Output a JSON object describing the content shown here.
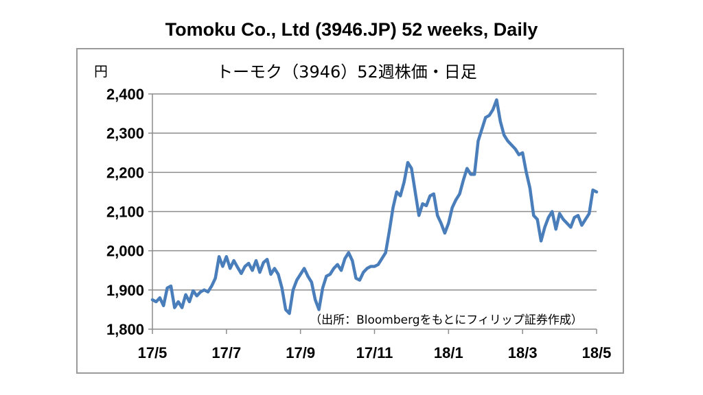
{
  "page_title": "Tomoku Co., Ltd (3946.JP) 52 weeks, Daily",
  "colors": {
    "line": "#4a7ebb",
    "grid": "#8c8c8c",
    "frame": "#9a9a9a"
  },
  "chart_data": {
    "type": "line",
    "title": "トーモク（3946）52週株価・日足",
    "ylabel": "円",
    "source_note": "（出所：Bloombergをもとにフィリップ証券作成）",
    "ylim": [
      1800,
      2400
    ],
    "yticks": [
      1800,
      1900,
      2000,
      2100,
      2200,
      2300,
      2400
    ],
    "ytick_labels": [
      "1,800",
      "1,900",
      "2,000",
      "2,100",
      "2,200",
      "2,300",
      "2,400"
    ],
    "xticks": [
      "17/5",
      "17/7",
      "17/9",
      "17/11",
      "18/1",
      "18/3",
      "18/5"
    ],
    "grid": true,
    "series": [
      {
        "x": [
          0,
          0.05,
          0.1,
          0.15,
          0.2,
          0.25,
          0.3,
          0.35,
          0.4,
          0.45,
          0.5,
          0.55,
          0.6,
          0.65,
          0.7,
          0.75,
          0.8,
          0.85,
          0.9,
          0.95,
          1,
          1.05,
          1.1,
          1.15,
          1.2,
          1.25,
          1.3,
          1.35,
          1.4,
          1.45,
          1.5,
          1.55,
          1.6,
          1.65,
          1.7,
          1.75,
          1.8,
          1.85,
          1.9,
          1.95,
          2,
          2.05,
          2.1,
          2.15,
          2.2,
          2.25,
          2.3,
          2.35,
          2.4,
          2.45,
          2.5,
          2.55,
          2.6,
          2.65,
          2.7,
          2.75,
          2.8,
          2.85,
          2.9,
          2.95,
          3,
          3.05,
          3.1,
          3.15,
          3.2,
          3.25,
          3.3,
          3.35,
          3.4,
          3.45,
          3.5,
          3.55,
          3.6,
          3.65,
          3.7,
          3.75,
          3.8,
          3.85,
          3.9,
          3.95,
          4,
          4.05,
          4.1,
          4.15,
          4.2,
          4.25,
          4.3,
          4.35,
          4.4,
          4.45,
          4.5,
          4.55,
          4.6,
          4.65,
          4.7,
          4.75,
          4.8,
          4.85,
          4.9,
          4.95,
          5,
          5.05,
          5.1,
          5.15,
          5.2,
          5.25,
          5.3,
          5.35,
          5.4,
          5.45,
          5.5,
          5.55,
          5.6,
          5.65,
          5.7,
          5.75,
          5.8,
          5.85,
          5.9,
          5.95,
          6
        ],
        "y": [
          1875,
          1870,
          1880,
          1860,
          1905,
          1910,
          1855,
          1870,
          1855,
          1888,
          1870,
          1898,
          1885,
          1895,
          1900,
          1895,
          1910,
          1930,
          1985,
          1960,
          1985,
          1955,
          1975,
          1958,
          1942,
          1960,
          1968,
          1950,
          1975,
          1945,
          1970,
          1978,
          1940,
          1955,
          1940,
          1905,
          1850,
          1840,
          1900,
          1925,
          1940,
          1955,
          1935,
          1920,
          1875,
          1850,
          1905,
          1935,
          1940,
          1955,
          1965,
          1950,
          1980,
          1995,
          1975,
          1930,
          1925,
          1945,
          1955,
          1960,
          1960,
          1965,
          1980,
          1995,
          2050,
          2110,
          2150,
          2140,
          2175,
          2225,
          2210,
          2150,
          2090,
          2120,
          2115,
          2140,
          2145,
          2090,
          2070,
          2045,
          2070,
          2110,
          2130,
          2145,
          2180,
          2210,
          2195,
          2195,
          2280,
          2310,
          2340,
          2345,
          2360,
          2385,
          2330,
          2295,
          2280,
          2270,
          2260,
          2245,
          2250,
          2200,
          2160,
          2090,
          2080,
          2025,
          2060,
          2085,
          2100,
          2055,
          2095,
          2080,
          2070,
          2060,
          2085,
          2090,
          2065,
          2080,
          2095,
          2155,
          2150
        ]
      }
    ]
  }
}
